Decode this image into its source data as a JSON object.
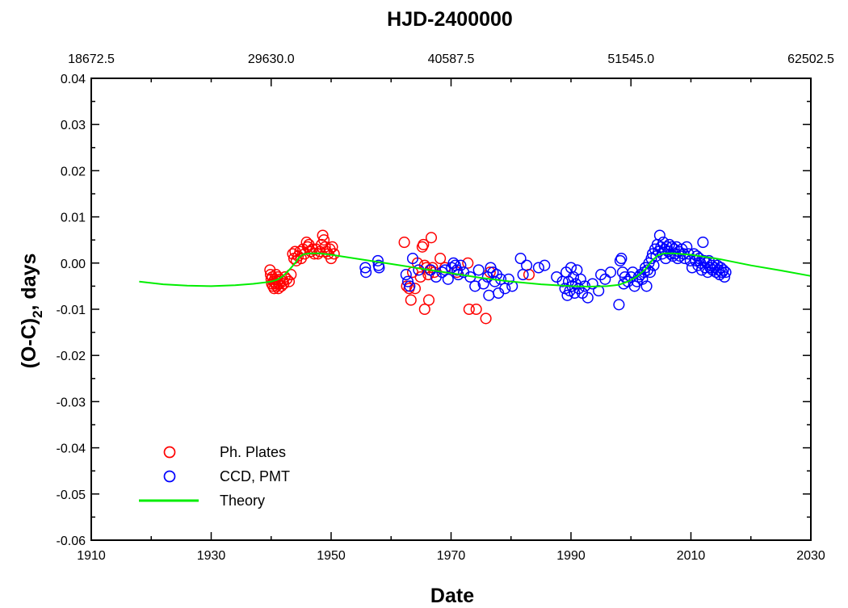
{
  "chart_data": {
    "type": "scatter",
    "title": "HJD-2400000",
    "xlabel": "Date",
    "ylabel": "(O-C)",
    "ylabel_sub": "2",
    "ylabel_suffix": ", days",
    "xlim": [
      1910,
      2030
    ],
    "ylim": [
      -0.06,
      0.04
    ],
    "xticks": [
      1910,
      1930,
      1950,
      1970,
      1990,
      2010,
      2030
    ],
    "yticks": [
      -0.06,
      -0.05,
      -0.04,
      -0.03,
      -0.02,
      -0.01,
      0.0,
      0.01,
      0.02,
      0.03,
      0.04
    ],
    "ytick_labels": [
      "-0.06",
      "-0.05",
      "-0.04",
      "-0.03",
      "-0.02",
      "-0.01",
      "0.00",
      "0.01",
      "0.02",
      "0.03",
      "0.04"
    ],
    "top_axis": {
      "tick_positions_x": [
        1910,
        1940,
        1970,
        2000,
        2030
      ],
      "labels": [
        "18672.5",
        "29630.0",
        "40587.5",
        "51545.0",
        "62502.5"
      ]
    },
    "grid": false,
    "legend_position": "bottom-left",
    "series": [
      {
        "name": "Ph. Plates",
        "kind": "scatter",
        "marker": "open-circle",
        "color": "#ff0000",
        "points": [
          [
            1939.8,
            -0.0015
          ],
          [
            1939.9,
            -0.0025
          ],
          [
            1940.0,
            -0.0035
          ],
          [
            1940.1,
            -0.0045
          ],
          [
            1940.2,
            -0.003
          ],
          [
            1940.3,
            -0.005
          ],
          [
            1940.4,
            -0.004
          ],
          [
            1940.5,
            -0.0055
          ],
          [
            1940.6,
            -0.0035
          ],
          [
            1940.7,
            -0.0045
          ],
          [
            1940.8,
            -0.0025
          ],
          [
            1940.9,
            -0.005
          ],
          [
            1941.0,
            -0.004
          ],
          [
            1941.1,
            -0.003
          ],
          [
            1941.2,
            -0.0055
          ],
          [
            1941.3,
            -0.0045
          ],
          [
            1941.5,
            -0.0035
          ],
          [
            1941.7,
            -0.005
          ],
          [
            1941.9,
            -0.004
          ],
          [
            1942.1,
            -0.0045
          ],
          [
            1942.3,
            -0.003
          ],
          [
            1942.6,
            -0.0035
          ],
          [
            1943.0,
            -0.004
          ],
          [
            1943.3,
            -0.0025
          ],
          [
            1943.6,
            0.002
          ],
          [
            1943.8,
            0.001
          ],
          [
            1944.0,
            0.0025
          ],
          [
            1944.2,
            0.0005
          ],
          [
            1944.5,
            0.0015
          ],
          [
            1944.8,
            0.0025
          ],
          [
            1945.0,
            0.001
          ],
          [
            1945.3,
            0.003
          ],
          [
            1945.6,
            0.002
          ],
          [
            1945.9,
            0.0045
          ],
          [
            1946.1,
            0.0035
          ],
          [
            1946.3,
            0.004
          ],
          [
            1946.6,
            0.0025
          ],
          [
            1946.9,
            0.003
          ],
          [
            1947.2,
            0.002
          ],
          [
            1947.5,
            0.003
          ],
          [
            1947.8,
            0.002
          ],
          [
            1948.1,
            0.0025
          ],
          [
            1948.4,
            0.004
          ],
          [
            1948.6,
            0.006
          ],
          [
            1948.8,
            0.005
          ],
          [
            1949.0,
            0.0035
          ],
          [
            1949.2,
            0.0025
          ],
          [
            1949.5,
            0.002
          ],
          [
            1949.8,
            0.003
          ],
          [
            1950.0,
            0.001
          ],
          [
            1950.2,
            0.0035
          ],
          [
            1950.5,
            0.002
          ],
          [
            1962.2,
            0.0045
          ],
          [
            1962.6,
            -0.005
          ],
          [
            1963.0,
            -0.0055
          ],
          [
            1963.3,
            -0.008
          ],
          [
            1963.6,
            -0.002
          ],
          [
            1964.0,
            -0.0055
          ],
          [
            1964.4,
            0.0
          ],
          [
            1964.9,
            -0.003
          ],
          [
            1965.2,
            0.0035
          ],
          [
            1965.4,
            0.004
          ],
          [
            1965.6,
            -0.0005
          ],
          [
            1965.6,
            -0.01
          ],
          [
            1965.9,
            -0.001
          ],
          [
            1966.2,
            -0.0025
          ],
          [
            1966.3,
            -0.008
          ],
          [
            1966.5,
            -0.0015
          ],
          [
            1966.7,
            0.0055
          ],
          [
            1966.9,
            -0.001
          ],
          [
            1967.2,
            -0.002
          ],
          [
            1968.2,
            0.001
          ],
          [
            1969.0,
            -0.001
          ],
          [
            1971.0,
            -0.002
          ],
          [
            1972.8,
            0.0
          ],
          [
            1973.0,
            -0.01
          ],
          [
            1974.2,
            -0.01
          ],
          [
            1975.8,
            -0.012
          ],
          [
            1976.5,
            -0.002
          ],
          [
            1983.0,
            -0.0025
          ]
        ]
      },
      {
        "name": "CCD, PMT",
        "kind": "scatter",
        "marker": "open-circle",
        "color": "#0000ff",
        "points": [
          [
            1955.7,
            -0.001
          ],
          [
            1955.8,
            -0.002
          ],
          [
            1957.8,
            0.0005
          ],
          [
            1957.9,
            -0.0005
          ],
          [
            1958.0,
            -0.001
          ],
          [
            1962.5,
            -0.0025
          ],
          [
            1962.8,
            -0.004
          ],
          [
            1963.1,
            -0.005
          ],
          [
            1963.6,
            0.001
          ],
          [
            1964.6,
            -0.0015
          ],
          [
            1966.6,
            -0.0015
          ],
          [
            1967.5,
            -0.003
          ],
          [
            1968.5,
            -0.002
          ],
          [
            1969.0,
            -0.0015
          ],
          [
            1969.5,
            -0.0035
          ],
          [
            1970.1,
            -0.001
          ],
          [
            1970.4,
            0.0
          ],
          [
            1970.7,
            -0.0005
          ],
          [
            1971.0,
            -0.0015
          ],
          [
            1971.2,
            -0.0025
          ],
          [
            1971.6,
            -0.0005
          ],
          [
            1972.1,
            -0.002
          ],
          [
            1973.2,
            -0.003
          ],
          [
            1974.0,
            -0.005
          ],
          [
            1974.6,
            -0.0015
          ],
          [
            1975.4,
            -0.0045
          ],
          [
            1976.1,
            -0.003
          ],
          [
            1976.3,
            -0.007
          ],
          [
            1976.6,
            -0.001
          ],
          [
            1977.0,
            -0.002
          ],
          [
            1977.3,
            -0.004
          ],
          [
            1977.6,
            -0.0025
          ],
          [
            1977.9,
            -0.0065
          ],
          [
            1978.3,
            -0.0035
          ],
          [
            1979.0,
            -0.0055
          ],
          [
            1979.6,
            -0.0035
          ],
          [
            1980.2,
            -0.005
          ],
          [
            1981.6,
            0.001
          ],
          [
            1982.0,
            -0.0025
          ],
          [
            1982.6,
            -0.0005
          ],
          [
            1984.6,
            -0.001
          ],
          [
            1985.6,
            -0.0005
          ],
          [
            1987.6,
            -0.003
          ],
          [
            1988.6,
            -0.004
          ],
          [
            1989.0,
            -0.0055
          ],
          [
            1989.2,
            -0.002
          ],
          [
            1989.4,
            -0.007
          ],
          [
            1989.6,
            -0.004
          ],
          [
            1989.8,
            -0.006
          ],
          [
            1990.0,
            -0.001
          ],
          [
            1990.2,
            -0.005
          ],
          [
            1990.4,
            -0.003
          ],
          [
            1990.6,
            -0.0065
          ],
          [
            1990.8,
            -0.0045
          ],
          [
            1991.0,
            -0.0015
          ],
          [
            1991.3,
            -0.0055
          ],
          [
            1991.6,
            -0.0035
          ],
          [
            1991.9,
            -0.0065
          ],
          [
            1992.3,
            -0.005
          ],
          [
            1992.8,
            -0.0075
          ],
          [
            1993.6,
            -0.0045
          ],
          [
            1994.6,
            -0.006
          ],
          [
            1995.0,
            -0.0025
          ],
          [
            1995.7,
            -0.0035
          ],
          [
            1996.6,
            -0.002
          ],
          [
            1998.0,
            -0.009
          ],
          [
            1998.2,
            0.0005
          ],
          [
            1998.4,
            0.001
          ],
          [
            1998.6,
            -0.002
          ],
          [
            1998.8,
            -0.0045
          ],
          [
            1999.0,
            -0.003
          ],
          [
            1999.5,
            -0.004
          ],
          [
            2000.0,
            -0.003
          ],
          [
            2000.3,
            -0.002
          ],
          [
            2000.6,
            -0.005
          ],
          [
            2001.0,
            -0.004
          ],
          [
            2001.3,
            -0.003
          ],
          [
            2001.6,
            -0.0025
          ],
          [
            2001.9,
            -0.0035
          ],
          [
            2002.2,
            -0.002
          ],
          [
            2002.4,
            -0.001
          ],
          [
            2002.6,
            -0.005
          ],
          [
            2002.8,
            -0.0015
          ],
          [
            2003.0,
            0.0
          ],
          [
            2003.2,
            -0.002
          ],
          [
            2003.4,
            0.001
          ],
          [
            2003.6,
            0.002
          ],
          [
            2003.8,
            -0.0005
          ],
          [
            2004.0,
            0.003
          ],
          [
            2004.2,
            0.0015
          ],
          [
            2004.4,
            0.004
          ],
          [
            2004.6,
            0.0025
          ],
          [
            2004.8,
            0.006
          ],
          [
            2005.0,
            0.0035
          ],
          [
            2005.2,
            0.002
          ],
          [
            2005.4,
            0.0045
          ],
          [
            2005.6,
            0.003
          ],
          [
            2005.8,
            0.001
          ],
          [
            2006.0,
            0.0035
          ],
          [
            2006.2,
            0.0025
          ],
          [
            2006.4,
            0.004
          ],
          [
            2006.6,
            0.002
          ],
          [
            2006.8,
            0.0035
          ],
          [
            2007.0,
            0.0015
          ],
          [
            2007.2,
            0.003
          ],
          [
            2007.4,
            0.002
          ],
          [
            2007.6,
            0.0035
          ],
          [
            2007.8,
            0.001
          ],
          [
            2008.0,
            0.0025
          ],
          [
            2008.2,
            0.0015
          ],
          [
            2008.5,
            0.003
          ],
          [
            2008.8,
            0.002
          ],
          [
            2009.0,
            0.001
          ],
          [
            2009.3,
            0.0035
          ],
          [
            2009.6,
            0.002
          ],
          [
            2009.9,
            0.0005
          ],
          [
            2010.2,
            -0.001
          ],
          [
            2010.5,
            0.002
          ],
          [
            2010.8,
            0.0005
          ],
          [
            2011.0,
            0.0015
          ],
          [
            2011.2,
            -0.0005
          ],
          [
            2011.4,
            0.001
          ],
          [
            2011.6,
            0.0
          ],
          [
            2011.8,
            -0.0015
          ],
          [
            2012.0,
            0.0045
          ],
          [
            2012.2,
            0.0005
          ],
          [
            2012.4,
            -0.001
          ],
          [
            2012.6,
            0.0
          ],
          [
            2012.8,
            -0.002
          ],
          [
            2013.0,
            0.0005
          ],
          [
            2013.2,
            -0.001
          ],
          [
            2013.4,
            -0.0005
          ],
          [
            2013.6,
            -0.0015
          ],
          [
            2013.8,
            0.0
          ],
          [
            2014.0,
            -0.001
          ],
          [
            2014.2,
            -0.002
          ],
          [
            2014.4,
            -0.0005
          ],
          [
            2014.6,
            -0.0015
          ],
          [
            2014.8,
            -0.0025
          ],
          [
            2015.0,
            -0.001
          ],
          [
            2015.2,
            -0.002
          ],
          [
            2015.4,
            -0.0015
          ],
          [
            2015.6,
            -0.003
          ],
          [
            2015.8,
            -0.002
          ]
        ]
      },
      {
        "name": "Theory",
        "kind": "line",
        "color": "#00ee00",
        "points": [
          [
            1918,
            -0.004
          ],
          [
            1922,
            -0.0046
          ],
          [
            1926,
            -0.0049
          ],
          [
            1930,
            -0.005
          ],
          [
            1934,
            -0.0048
          ],
          [
            1937,
            -0.0045
          ],
          [
            1939,
            -0.0042
          ],
          [
            1940,
            -0.004
          ],
          [
            1941,
            -0.0036
          ],
          [
            1942,
            -0.0028
          ],
          [
            1943,
            -0.0015
          ],
          [
            1944,
            0.0
          ],
          [
            1944.7,
            0.0013
          ],
          [
            1945.4,
            0.0019
          ],
          [
            1946.5,
            0.0021
          ],
          [
            1948,
            0.0021
          ],
          [
            1950,
            0.0018
          ],
          [
            1955,
            0.0008
          ],
          [
            1960,
            -0.0002
          ],
          [
            1965,
            -0.0012
          ],
          [
            1970,
            -0.0022
          ],
          [
            1975,
            -0.0032
          ],
          [
            1980,
            -0.004
          ],
          [
            1985,
            -0.0046
          ],
          [
            1990,
            -0.005
          ],
          [
            1993,
            -0.0051
          ],
          [
            1996,
            -0.005
          ],
          [
            1998,
            -0.0047
          ],
          [
            1999.5,
            -0.004
          ],
          [
            2001,
            -0.0029
          ],
          [
            2002.5,
            -0.0012
          ],
          [
            2003.5,
            0.0005
          ],
          [
            2004.5,
            0.0017
          ],
          [
            2005.5,
            0.0021
          ],
          [
            2007,
            0.0021
          ],
          [
            2010,
            0.0018
          ],
          [
            2015,
            0.0008
          ],
          [
            2020,
            -0.0005
          ],
          [
            2025,
            -0.0016
          ],
          [
            2030,
            -0.0028
          ]
        ]
      }
    ]
  }
}
